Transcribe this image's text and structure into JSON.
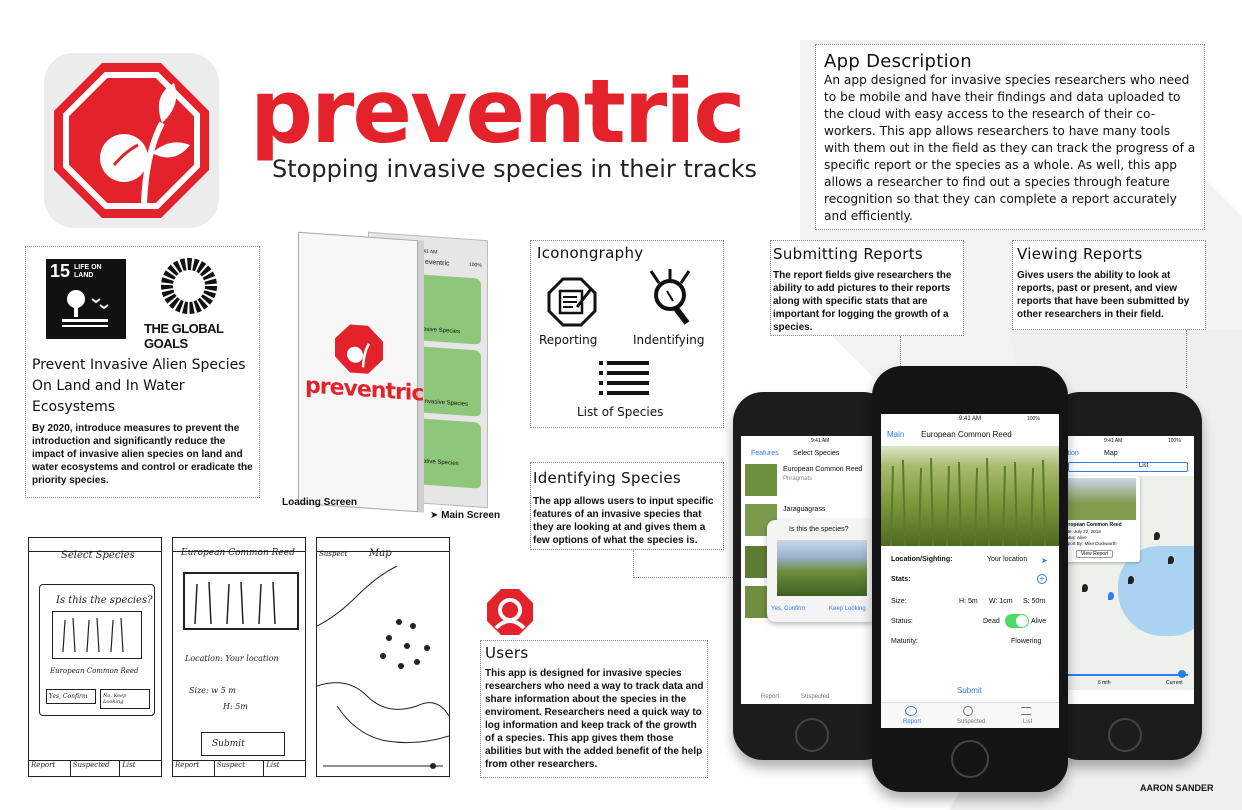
{
  "brand": {
    "name": "preventric",
    "tagline": "Stopping invasive species in their tracks",
    "accent": "#e3222b"
  },
  "app_description": {
    "title": "App Description",
    "body": "An app designed for invasive species researchers who need to be mobile and have their findings and data uploaded to the cloud with easy access to the research of their co-workers. This app allows researchers to have many tools with them out in the field as they can track the progress of a specific report or the species as a whole.  As well, this app allows a researcher to find out a species through feature recognition so that they can complete a report accurately and efficiently."
  },
  "goals": {
    "sdg_number": "15",
    "sdg_label": "LIFE ON LAND",
    "global_goals": "THE GLOBAL GOALS",
    "title": "Prevent Invasive Alien Species On Land and In Water Ecosystems",
    "body": "By 2020, introduce measures to prevent the introduction and significantly reduce the impact of invasive alien species on land and water ecosystems and control or eradicate the priority species."
  },
  "mockup": {
    "loading_label": "Loading Screen",
    "main_label": "➤ Main Screen",
    "logo_text": "preventric",
    "time": "9:41 AM",
    "battery": "100%",
    "title_partial": "eventric",
    "item_label": "asive Species",
    "item_label2": "Invasive Species",
    "item_label3": "ative Species"
  },
  "iconography": {
    "title": "Iconongraphy",
    "reporting": "Reporting",
    "identifying": "Indentifying",
    "list": "List of Species"
  },
  "identifying_species": {
    "title": "Identifying Species",
    "body": "The app allows users to input specific features of an invasive species that they are looking at and gives them a few options of what the species is."
  },
  "submitting_reports": {
    "title": "Submitting Reports",
    "body": "The report fields give researchers the ability to add pictures to their reports along with specific stats that are important for logging the growth of a species."
  },
  "viewing_reports": {
    "title": "Viewing Reports",
    "body": "Gives users the ability to look at reports, past or present, and view reports that have been submitted by other researchers in their field."
  },
  "users": {
    "title": "Users",
    "body": "This app is designed for invasive species researchers who need a way to track data and share information about the species in the enviroment. Researchers need a quick way to log information and keep track of the growth of a species. This app gives them those abilities but with the added benefit of the help from  other researchers."
  },
  "sketches": {
    "s1_title": "Select Species",
    "s1_question": "Is this the species?",
    "s1_name": "European Common Reed",
    "s1_yes": "Yes, Confirm",
    "s1_no": "No, Keep Looking",
    "s1_tabs": [
      "Report",
      "Suspected",
      "List"
    ],
    "s2_title": "European Common Reed",
    "s2_location": "Location: Your location",
    "s2_size": "Size: w 5 m",
    "s2_height": "H: 5m",
    "s2_submit": "Submit",
    "s2_tabs": [
      "Report",
      "Suspect",
      "List"
    ],
    "s3_back": "Suspect",
    "s3_title": "Map"
  },
  "phone_left": {
    "time": "9:41 AM",
    "back": "Features",
    "title": "Select Species",
    "items": [
      "European Common Reed",
      "Phragmats",
      "Jaraguagrass"
    ],
    "popup_title": "Is this the species?",
    "yes": "Yes, Confirm",
    "no": "Keep Looking",
    "tabs": [
      "Report",
      "Suspected"
    ]
  },
  "phone_center": {
    "time": "9:41 AM",
    "battery": "100%",
    "back": "Main",
    "title": "European Common Reed",
    "location_label": "Location/Sighting:",
    "location_value": "Your location",
    "stats_label": "Stats:",
    "size_label": "Size:",
    "size_h": "H: 5m",
    "size_w": "W: 1cm",
    "size_s": "S: 50m",
    "status_label": "Status:",
    "status_dead": "Dead",
    "status_alive": "Alive",
    "maturity_label": "Maturity:",
    "maturity_value": "Flowering",
    "submit": "Submit",
    "tabs": [
      "Report",
      "Suspected",
      "List"
    ]
  },
  "phone_right": {
    "time": "9:41 AM",
    "battery": "100%",
    "back": "iption",
    "title": "Map",
    "seg": "List",
    "card_title": "European Common Reed",
    "card_date": "Date: July 22, 2018",
    "card_status": "Status: Alive",
    "card_reporter": "Report By: Mike Duckworth",
    "card_button": "View Report",
    "slider_left": "6 mth",
    "slider_right": "Current"
  },
  "author": "AARON SANDER",
  "colors": {
    "green_tile": "#8fc77a",
    "ios_blue": "#2f7cf6",
    "toggle_green": "#4cd964"
  }
}
